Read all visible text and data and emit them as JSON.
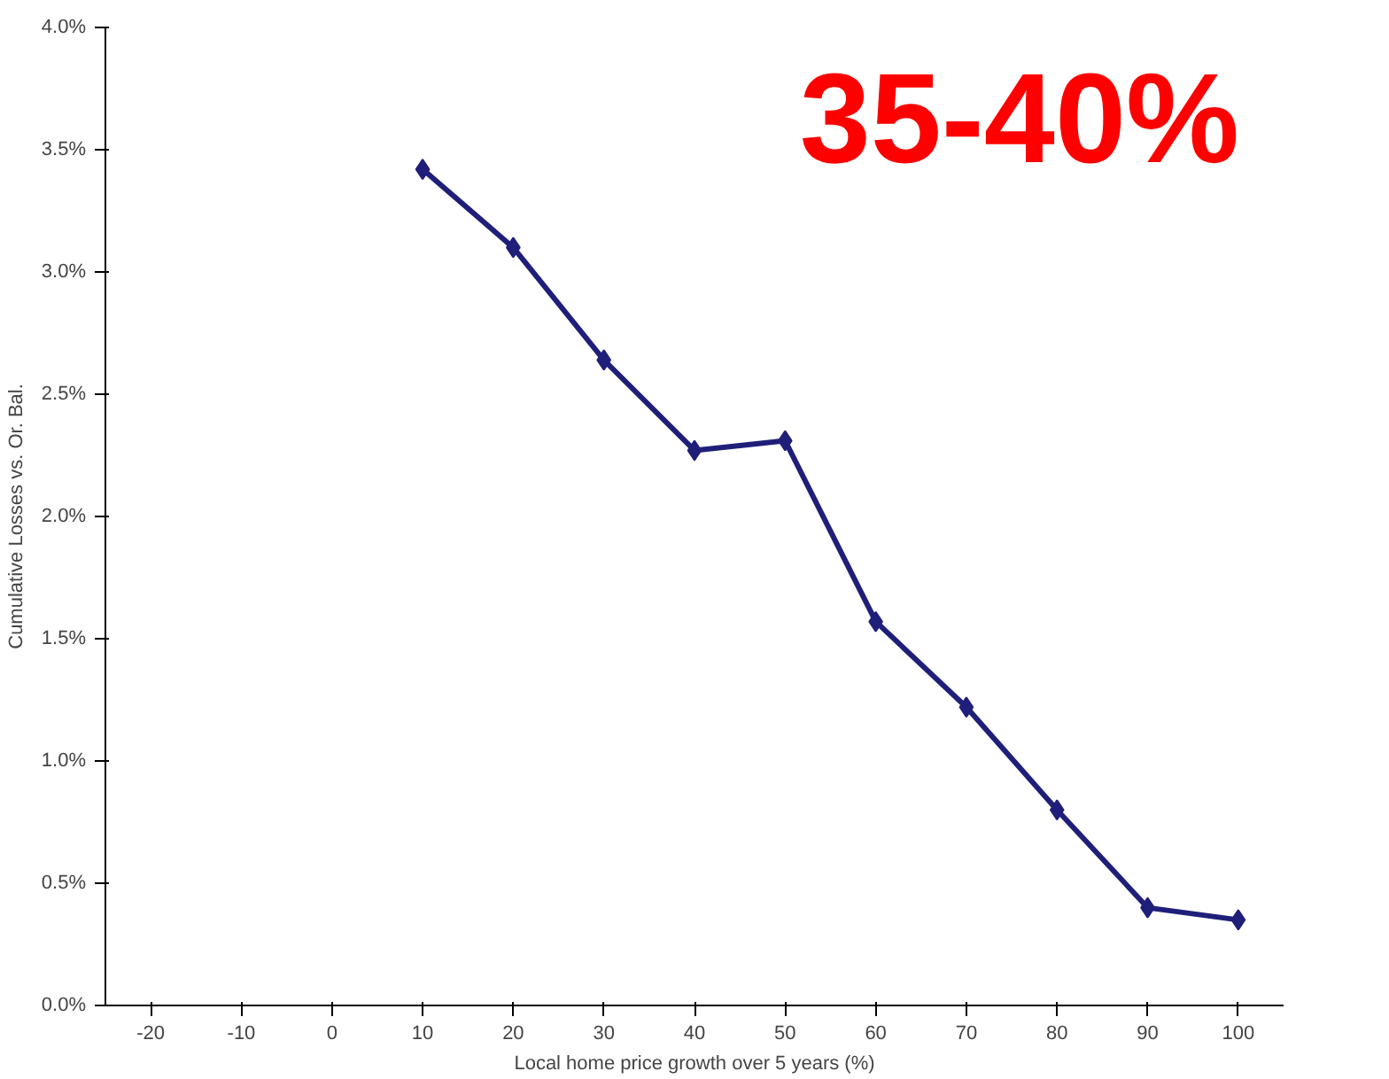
{
  "chart_data": {
    "type": "line",
    "xlabel": "Local home price growth over 5 years (%)",
    "ylabel": "Cumulative Losses vs. Or. Bal.",
    "categories": [
      "-20",
      "-10",
      "0",
      "10",
      "20",
      "30",
      "40",
      "50",
      "60",
      "70",
      "80",
      "90",
      "100"
    ],
    "series": [
      {
        "color": "#1f1f7a",
        "values": [
          null,
          null,
          null,
          3.42,
          3.1,
          2.64,
          2.27,
          2.31,
          1.57,
          1.22,
          0.8,
          0.4,
          0.35
        ]
      }
    ],
    "ylim": [
      0,
      4
    ],
    "yticks": [
      {
        "value": 0,
        "label": "0.0%"
      },
      {
        "value": 0.5,
        "label": "0.5%"
      },
      {
        "value": 1,
        "label": "1.0%"
      },
      {
        "value": 1.5,
        "label": "1.5%"
      },
      {
        "value": 2,
        "label": "2.0%"
      },
      {
        "value": 2.5,
        "label": "2.5%"
      },
      {
        "value": 3,
        "label": "3.0%"
      },
      {
        "value": 3.5,
        "label": "3.5%"
      },
      {
        "value": 4,
        "label": "4.0%"
      }
    ],
    "annotations": [
      "35-40%"
    ],
    "marker": "diamond",
    "line_style": "solid"
  }
}
